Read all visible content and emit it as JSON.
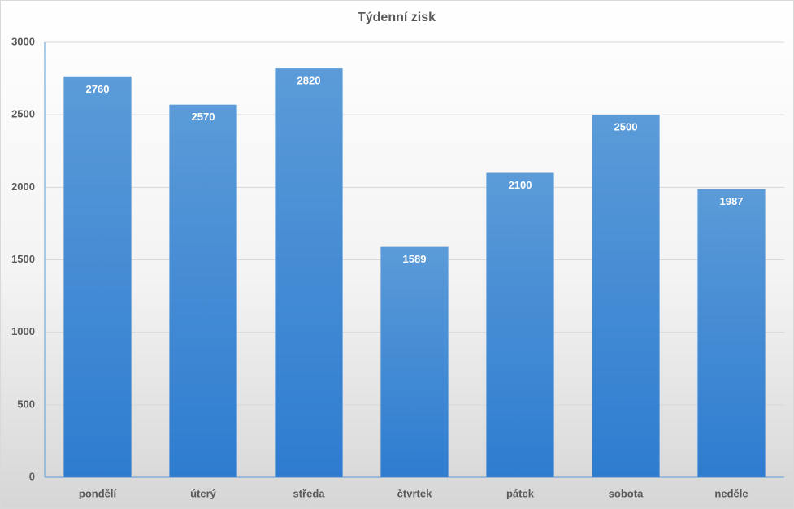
{
  "chart_data": {
    "type": "bar",
    "title": "Týdenní zisk",
    "categories": [
      "pondělí",
      "úterý",
      "středa",
      "čtvrtek",
      "pátek",
      "sobota",
      "neděle"
    ],
    "values": [
      2760,
      2570,
      2820,
      1589,
      2100,
      2500,
      1987
    ],
    "color": "#4a8fd6",
    "ylim": [
      0,
      3000
    ],
    "yticks": [
      0,
      500,
      1000,
      1500,
      2000,
      2500,
      3000
    ],
    "grid": true
  }
}
